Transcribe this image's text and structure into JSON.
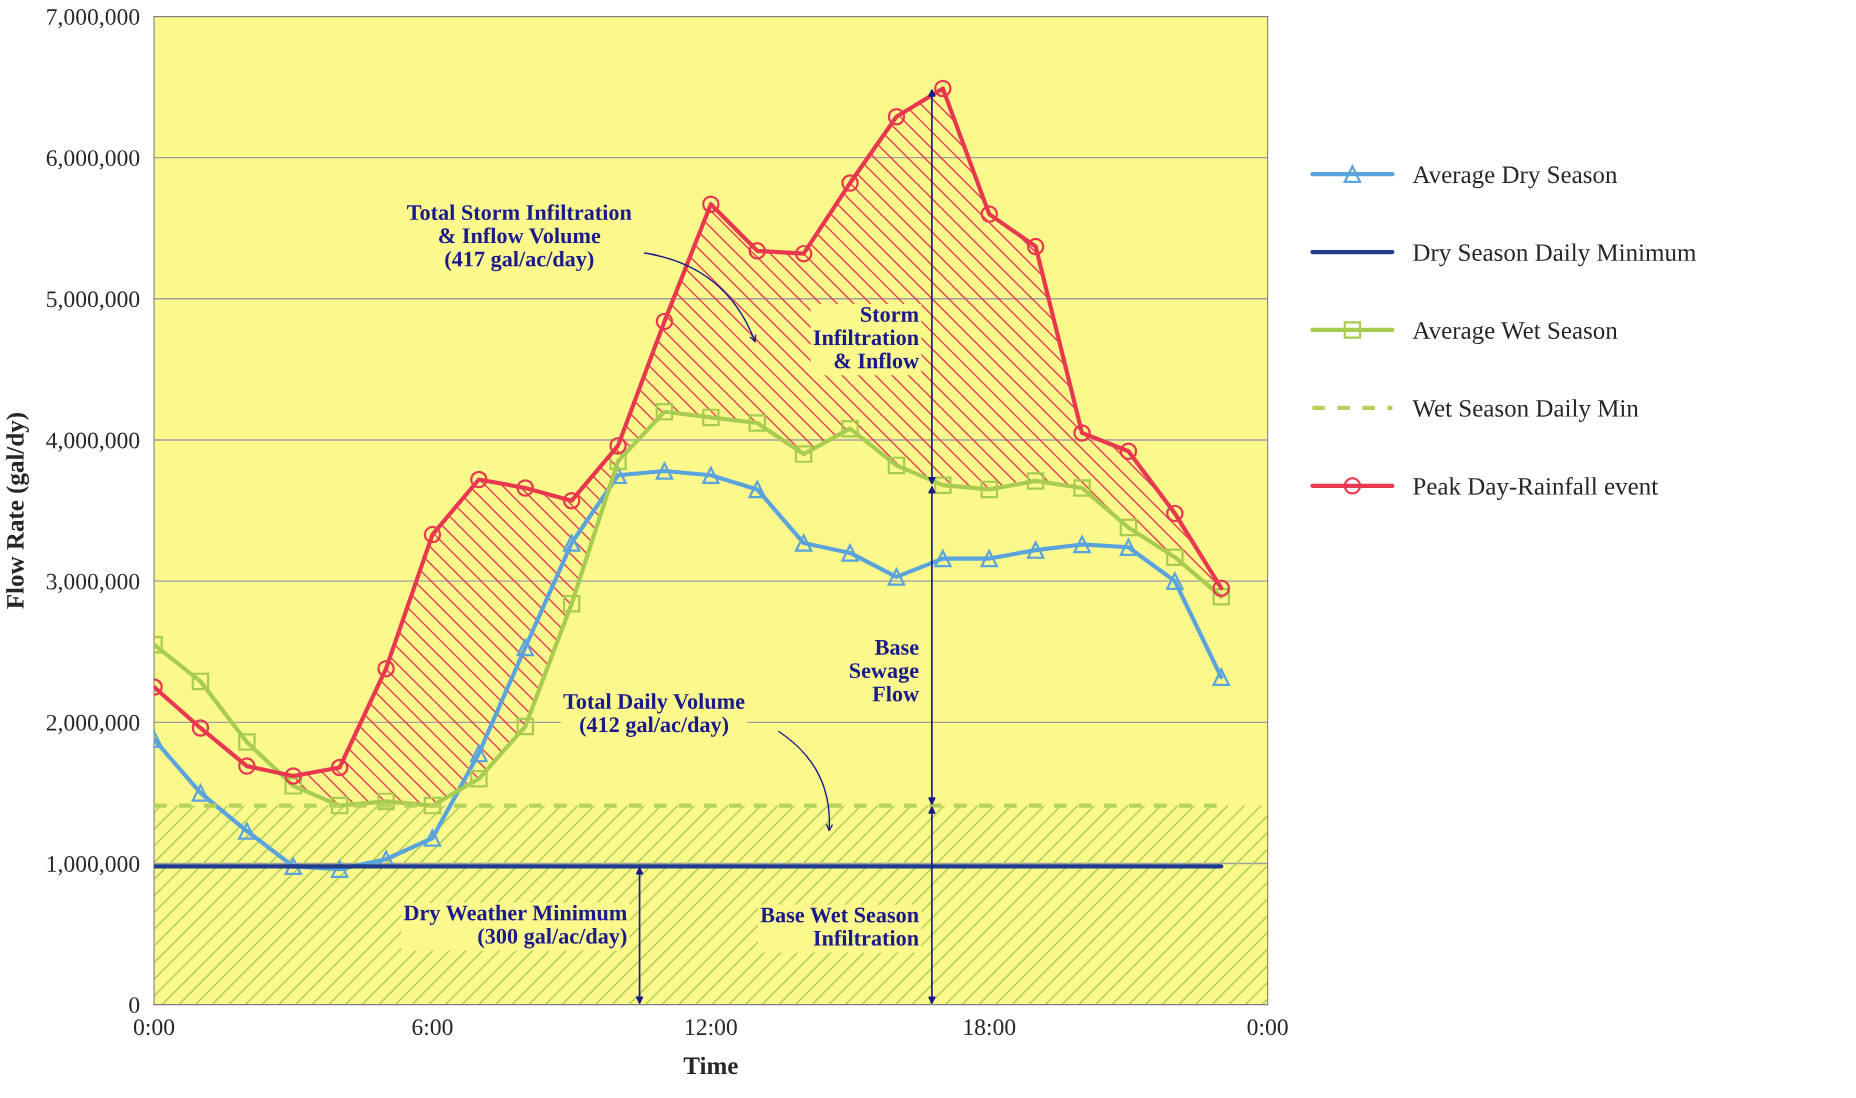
{
  "chart_data": {
    "type": "line",
    "xlabel": "Time",
    "ylabel": "Flow Rate (gal/dy)",
    "x": [
      0,
      1,
      2,
      3,
      4,
      5,
      6,
      7,
      8,
      9,
      10,
      11,
      12,
      13,
      14,
      15,
      16,
      17,
      18,
      19,
      20,
      21,
      22,
      23
    ],
    "series": [
      {
        "name": "Average Dry Season",
        "color": "#5ba3dc",
        "marker": "triangle",
        "values": [
          1880000,
          1500000,
          1230000,
          980000,
          960000,
          1030000,
          1180000,
          1780000,
          2530000,
          3270000,
          3750000,
          3780000,
          3750000,
          3650000,
          3270000,
          3200000,
          3030000,
          3160000,
          3160000,
          3220000,
          3260000,
          3240000,
          3000000,
          2320000
        ]
      },
      {
        "name": "Dry Season Daily Minimum",
        "color": "#1f3d8c",
        "marker": "none",
        "values": [
          980000,
          980000,
          980000,
          980000,
          980000,
          980000,
          980000,
          980000,
          980000,
          980000,
          980000,
          980000,
          980000,
          980000,
          980000,
          980000,
          980000,
          980000,
          980000,
          980000,
          980000,
          980000,
          980000,
          980000
        ]
      },
      {
        "name": "Average Wet Season",
        "color": "#a8cc50",
        "marker": "square",
        "values": [
          2550000,
          2290000,
          1860000,
          1550000,
          1410000,
          1440000,
          1410000,
          1600000,
          1970000,
          2840000,
          3850000,
          4200000,
          4160000,
          4120000,
          3900000,
          4080000,
          3820000,
          3680000,
          3650000,
          3710000,
          3660000,
          3380000,
          3170000,
          2890000
        ]
      },
      {
        "name": "Wet Season Daily Min",
        "color": "#b5d35a",
        "marker": "none",
        "line_style": "dashed",
        "values": [
          1410000,
          1410000,
          1410000,
          1410000,
          1410000,
          1410000,
          1410000,
          1410000,
          1410000,
          1410000,
          1410000,
          1410000,
          1410000,
          1410000,
          1410000,
          1410000,
          1410000,
          1410000,
          1410000,
          1410000,
          1410000,
          1410000,
          1410000,
          1410000
        ]
      },
      {
        "name": "Peak Day-Rainfall event",
        "color": "#e8384f",
        "marker": "circle",
        "values": [
          2250000,
          1960000,
          1690000,
          1620000,
          1680000,
          2380000,
          3330000,
          3720000,
          3660000,
          3570000,
          3960000,
          4840000,
          5670000,
          5340000,
          5320000,
          5820000,
          6290000,
          6490000,
          5600000,
          5370000,
          4050000,
          3920000,
          3480000,
          2950000
        ],
        "lower": [
          null,
          null,
          null,
          1550000,
          1410000,
          1440000,
          1410000,
          1600000,
          1970000,
          2840000,
          3850000,
          4200000,
          4160000,
          4120000,
          3900000,
          4080000,
          3820000,
          3680000,
          3650000,
          3710000,
          3660000,
          3380000,
          3170000,
          2890000
        ],
        "upper": [
          null,
          null,
          null,
          1620000,
          1680000,
          2380000,
          3330000,
          3720000,
          3660000,
          3570000,
          3960000,
          4840000,
          5670000,
          5340000,
          5320000,
          5820000,
          6290000,
          6490000,
          5600000,
          5370000,
          4050000,
          3920000,
          3480000,
          2950000
        ]
      }
    ],
    "xlim": [
      0,
      24
    ],
    "xticks": [
      {
        "value": 0,
        "label": "0:00"
      },
      {
        "value": 6,
        "label": "6:00"
      },
      {
        "value": 12,
        "label": "12:00"
      },
      {
        "value": 18,
        "label": "18:00"
      },
      {
        "value": 24,
        "label": "0:00"
      }
    ],
    "ylim": [
      0,
      7000000
    ],
    "yticks": [
      0,
      {
        "value": 1000000,
        "label": "1,000,000"
      },
      {
        "value": 2000000,
        "label": "2,000,000"
      },
      {
        "value": 3000000,
        "label": "3,000,000"
      },
      {
        "value": 4000000,
        "label": "4,000,000"
      },
      {
        "value": 5000000,
        "label": "5,000,000"
      },
      {
        "value": 6000000,
        "label": "6,000,000"
      },
      {
        "value": 7000000,
        "label": "7,000,000"
      }
    ],
    "grid": "y",
    "legend": "right",
    "bands": [
      {
        "axis": "y",
        "from": 0,
        "to": 1410000,
        "color": "#a8cc50"
      }
    ],
    "annotations": [
      "Total Storm Infiltration\n& Inflow Volume\n(417 gal/ac/day)",
      "Storm\nInfiltration\n& Inflow",
      "Base\nSewage\nFlow",
      "Base Wet Season\nInfiltration",
      "Total Daily Volume\n(412 gal/ac/day)",
      "Dry Weather Minimum\n(300 gal/ac/day)"
    ]
  }
}
